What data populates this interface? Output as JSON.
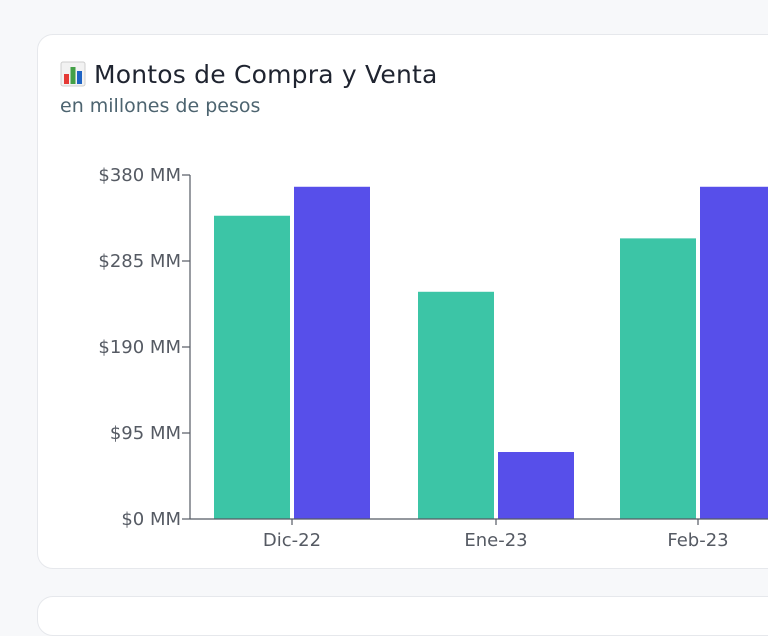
{
  "header": {
    "icon": "bar-chart-icon",
    "title": "Montos de Compra y Venta",
    "subtitle": "en millones de pesos"
  },
  "colors": {
    "series_compra": "#3cc5a6",
    "series_venta": "#574fea",
    "axis": "#555a63",
    "icon_red": "#e53935",
    "icon_green": "#43a047",
    "icon_blue": "#1e63c4"
  },
  "chart_data": {
    "type": "bar",
    "categories": [
      "Dic-22",
      "Ene-23",
      "Feb-23"
    ],
    "series": [
      {
        "values": [
          335,
          251,
          310
        ]
      },
      {
        "values": [
          367,
          74,
          367
        ]
      }
    ],
    "yticks": [
      0,
      95,
      190,
      285,
      380
    ],
    "ytick_labels": [
      "$0 MM",
      "$95 MM",
      "$190 MM",
      "$285 MM",
      "$380 MM"
    ],
    "ylim": [
      0,
      380
    ],
    "title": "",
    "xlabel": "",
    "ylabel": "",
    "grid": false,
    "legend": false
  }
}
